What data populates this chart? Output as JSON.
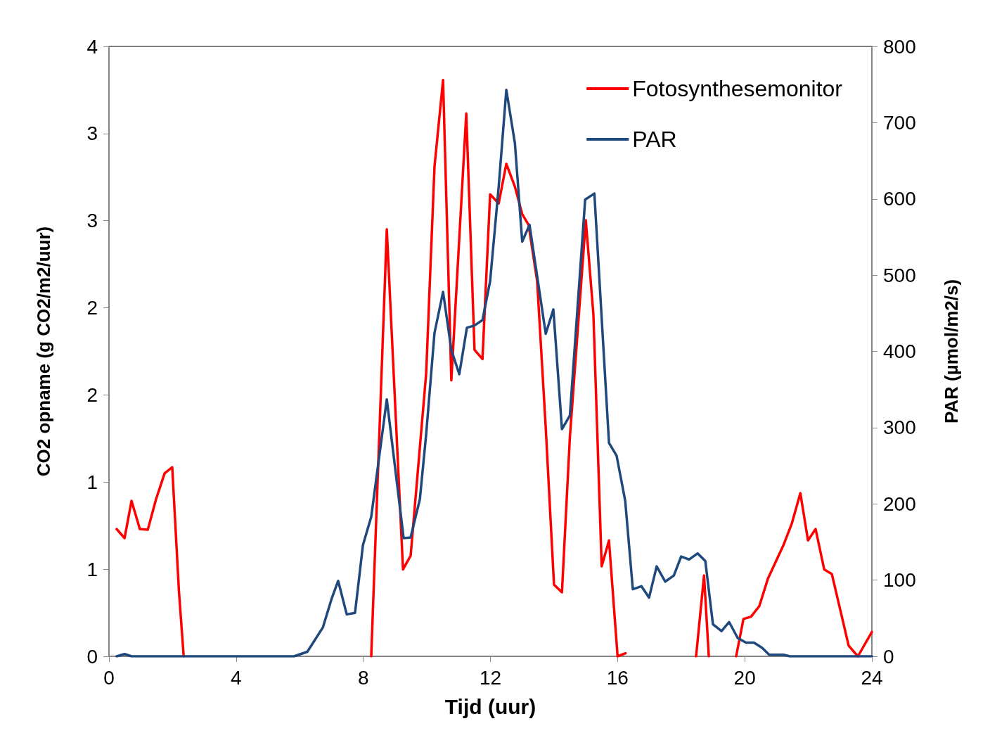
{
  "chart_data": {
    "type": "line",
    "xlabel": "Tijd (uur)",
    "ylabel": "CO2 opname (g CO2/m2/uur)",
    "y2label": "PAR (µmol/m2/s)",
    "xlim": [
      0,
      24
    ],
    "xticks": [
      0,
      4,
      8,
      12,
      16,
      20,
      24
    ],
    "ylim": [
      0,
      4
    ],
    "yticks": [
      0,
      {
        "value": 0.5714,
        "label": "1"
      },
      {
        "value": 1.1429,
        "label": "1"
      },
      {
        "value": 1.7143,
        "label": "2"
      },
      {
        "value": 2.2857,
        "label": "2"
      },
      {
        "value": 2.8571,
        "label": "3"
      },
      {
        "value": 3.4286,
        "label": "3"
      },
      4
    ],
    "y2lim": [
      0,
      800
    ],
    "y2ticks": [
      0,
      100,
      200,
      300,
      400,
      500,
      600,
      700,
      800
    ],
    "legend": "top right",
    "grid": false,
    "marker": "none",
    "line_style": "solid",
    "series": [
      {
        "name": "Fotosynthesemonitor",
        "color": "#ff0000",
        "x": [
          0.24,
          0.49,
          0.71,
          0.97,
          1.22,
          1.48,
          1.75,
          1.99,
          2.2,
          2.35,
          5,
          8.25,
          8.74,
          9.25,
          9.49,
          9.98,
          10.24,
          10.51,
          10.77,
          11.24,
          11.5,
          11.75,
          11.99,
          12.26,
          12.5,
          12.77,
          13.0,
          13.2,
          13.47,
          13.74,
          14.0,
          14.25,
          14.5,
          15.0,
          15.24,
          15.5,
          15.73,
          16.0,
          16.25,
          17,
          18.47,
          18.72,
          18.87,
          19.3,
          19.73,
          19.96,
          20.2,
          20.46,
          20.73,
          21.22,
          21.48,
          21.75,
          21.99,
          22.23,
          22.5,
          22.74,
          23.0,
          23.27,
          23.56,
          24
        ],
        "values": [
          0.835,
          0.775,
          1.02,
          0.835,
          0.83,
          1.03,
          1.2,
          1.24,
          0.43,
          0,
          null,
          0,
          2.8,
          0.57,
          0.66,
          1.86,
          3.21,
          3.78,
          1.81,
          3.56,
          2.01,
          1.95,
          3.03,
          2.97,
          3.23,
          3.08,
          2.9,
          2.83,
          2.46,
          1.5,
          0.47,
          0.42,
          1.44,
          2.86,
          2.24,
          0.59,
          0.76,
          0,
          0.02,
          null,
          0,
          0.53,
          0,
          null,
          0,
          0.245,
          0.26,
          0.33,
          0.51,
          0.73,
          0.87,
          1.07,
          0.76,
          0.835,
          0.57,
          0.54,
          0.31,
          0.07,
          0,
          0.16
        ]
      },
      {
        "name": "PAR",
        "color": "#1f497d",
        "axis": "y2",
        "x": [
          0.24,
          0.49,
          0.71,
          5.82,
          6.24,
          6.73,
          7.0,
          7.21,
          7.48,
          7.74,
          7.99,
          8.25,
          8.74,
          9.27,
          9.49,
          9.78,
          9.98,
          10.24,
          10.51,
          10.77,
          11.02,
          11.26,
          11.5,
          11.75,
          11.99,
          12.26,
          12.5,
          12.77,
          13.0,
          13.23,
          13.74,
          13.98,
          14.25,
          14.5,
          14.98,
          15.27,
          15.73,
          15.97,
          16.24,
          16.48,
          16.75,
          16.99,
          17.23,
          17.5,
          17.77,
          18.0,
          18.25,
          18.52,
          18.76,
          19.0,
          19.27,
          19.51,
          19.78,
          20.04,
          20.29,
          20.55,
          20.77,
          21.24,
          21.42,
          24
        ],
        "values": [
          0,
          3,
          0,
          0,
          6,
          38,
          75,
          99,
          55,
          57,
          146,
          183,
          337,
          155,
          156,
          206,
          292,
          424,
          478,
          402,
          370,
          431,
          434,
          441,
          492,
          616,
          743,
          673,
          544,
          566,
          423,
          455,
          298,
          316,
          599,
          607,
          280,
          263,
          204,
          88,
          92,
          77,
          118,
          98,
          106,
          131,
          127,
          135,
          125,
          42,
          33,
          45,
          24,
          18,
          18,
          11,
          2,
          2,
          0,
          0
        ]
      }
    ]
  }
}
